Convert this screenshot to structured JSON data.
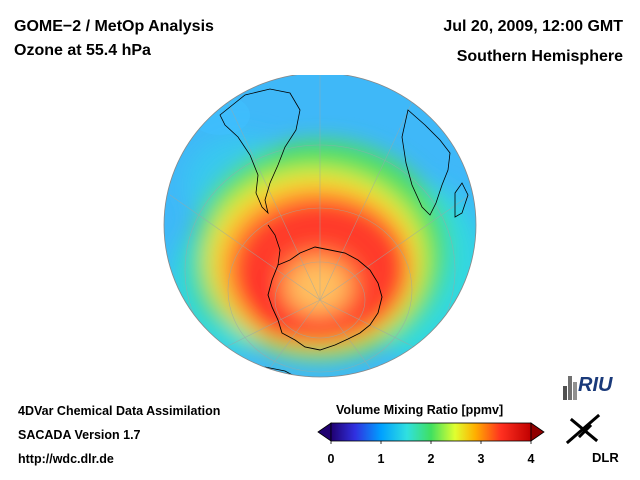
{
  "header": {
    "title_line1": "GOME−2 / MetOp Analysis",
    "title_line2": "Ozone at 55.4 hPa",
    "date": "Jul 20, 2009, 12:00 GMT",
    "hemisphere": "Southern Hemisphere"
  },
  "footer": {
    "line1": "4DVar Chemical Data Assimilation",
    "line2": "SACADA Version 1.7",
    "url": "http://wdc.dlr.de"
  },
  "colorbar": {
    "title": "Volume Mixing Ratio [ppmv]",
    "ticks": [
      "0",
      "1",
      "2",
      "3",
      "4"
    ],
    "range": [
      0,
      4
    ],
    "colors": [
      "#200070",
      "#3030e0",
      "#00a0ff",
      "#30e0e0",
      "#40e060",
      "#e0ff30",
      "#ffb000",
      "#ff3020",
      "#c00000"
    ]
  },
  "logos": {
    "riu": "RIU",
    "dlr": "DLR"
  },
  "map": {
    "projection": "orthographic south polar",
    "field": "ozone volume mixing ratio",
    "colors": {
      "ocean_low": "#40c0ff",
      "cyan": "#30e0e0",
      "green": "#50e060",
      "yellow": "#e8f030",
      "orange": "#ffb030",
      "red": "#ff3030",
      "core": "#ffc060"
    }
  }
}
